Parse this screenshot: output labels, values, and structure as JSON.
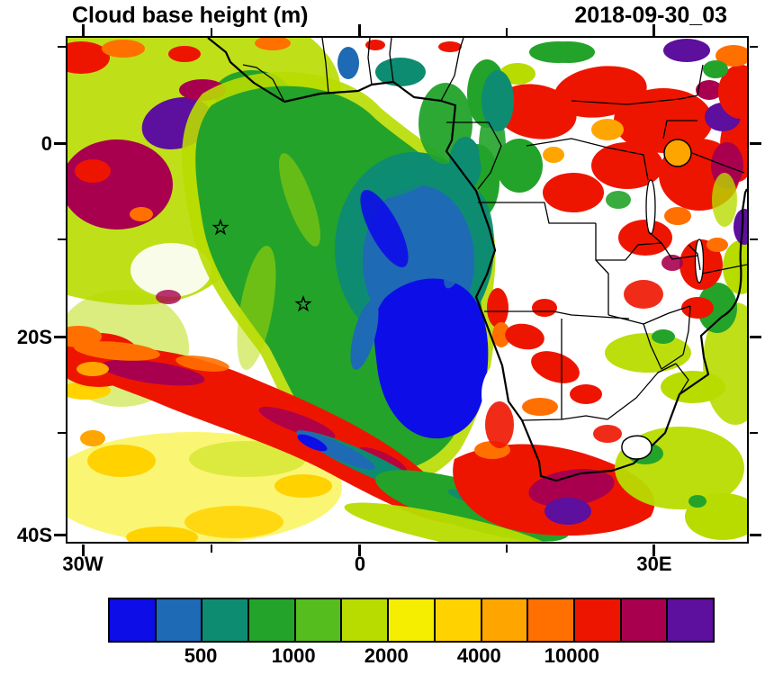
{
  "header": {
    "title": "Cloud base height (m)",
    "timestamp": "2018-09-30_03"
  },
  "axes": {
    "y_tick_labels": [
      "0",
      "20S",
      "40S"
    ],
    "x_tick_labels": [
      "30W",
      "0",
      "30E"
    ]
  },
  "colorbar": {
    "colors": [
      "#0d0de8",
      "#1e6ab4",
      "#0d8c72",
      "#23a32a",
      "#55bd1e",
      "#b8dc00",
      "#f6ee00",
      "#ffd200",
      "#ffa500",
      "#ff7000",
      "#ee1500",
      "#a8004f",
      "#5d0f9e"
    ],
    "labels": [
      "500",
      "1000",
      "2000",
      "4000",
      "10000"
    ],
    "label_cell_boundaries": [
      2,
      4,
      6,
      8,
      10
    ]
  },
  "chart_data": {
    "type": "heatmap",
    "title": "Cloud base height (m)",
    "units": "m",
    "timestamp": "2018-09-30_03",
    "map_extent": {
      "lon_min": -30,
      "lon_max": 39,
      "lat_min": -40.5,
      "lat_max": 11
    },
    "x_tick_labels": [
      "30W",
      "0",
      "30E"
    ],
    "y_tick_labels": [
      "0",
      "20S",
      "40S"
    ],
    "grid": false,
    "colorbar": {
      "style": "discrete",
      "n_cells": 13,
      "cell_colors": [
        "#0d0de8",
        "#1e6ab4",
        "#0d8c72",
        "#23a32a",
        "#55bd1e",
        "#b8dc00",
        "#f6ee00",
        "#ffd200",
        "#ffa500",
        "#ff7000",
        "#ee1500",
        "#a8004f",
        "#5d0f9e"
      ],
      "tick_labels": [
        "500",
        "1000",
        "2000",
        "4000",
        "10000"
      ],
      "tick_positions_after_cell": [
        2,
        4,
        6,
        8,
        10
      ],
      "position": "bottom"
    },
    "markers": [
      {
        "symbol": "star",
        "lon": -14.3,
        "lat": -7.9
      },
      {
        "symbol": "star",
        "lon": -5.8,
        "lat": -16.5
      }
    ],
    "field_summary": [
      {
        "region": "South Atlantic stratocumulus deck (5W-15E, 8S-25S)",
        "values": "low cloud base, below 1000 m (blue/steel-blue core ringed by teal and green)"
      },
      {
        "region": "NW tropical Atlantic (30W-10W, 8N-10S)",
        "values": "1000-2000 m (yellow-green/green) with patches above 4000-10000 m (red, maroon, purple)"
      },
      {
        "region": "SW corner of domain (30W-5W, 28S-40S)",
        "values": "around 2000 m (yellow/gold speckle), orange patches at left edge"
      },
      {
        "region": "Diagonal frontal band from about (27W,30S) to (8E,38S)",
        "values": "above 4000 m (red) with maroon streaks above 10000 m, thin blue/teal filament on its southern flank"
      },
      {
        "region": "Congo basin and East Africa",
        "values": "above 4000 m (red/orange) with maroon and purple patches above 10000 m; Lake Victoria area orange"
      },
      {
        "region": "Southern Africa interior",
        "values": "mostly cloud-free (white) with scattered red patches over Namibia; large red/maroon/purple mass near the south coast; yellow-green over the east"
      }
    ]
  }
}
